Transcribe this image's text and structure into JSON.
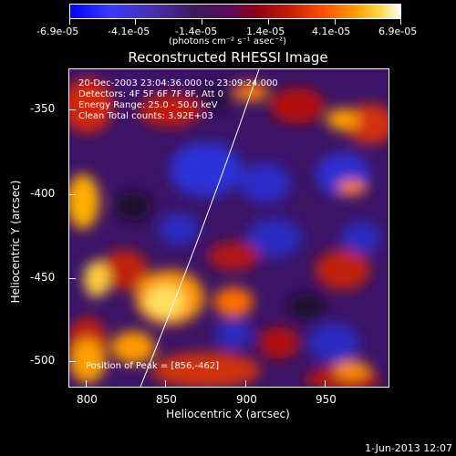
{
  "colorbar": {
    "tick_labels": [
      "-6.9e-05",
      "-4.1e-05",
      "-1.4e-05",
      "1.4e-05",
      "4.1e-05",
      "6.9e-05"
    ],
    "unit_label": "(photons cm⁻² s⁻¹ asec⁻²)"
  },
  "title": "Reconstructed RHESSI Image",
  "overlay": {
    "line1": "20-Dec-2003 23:04:36.000 to 23:09:24.000",
    "line2": "Detectors: 4F 5F 6F 7F 8F, Att 0",
    "line3": "Energy Range: 25.0 - 50.0 keV",
    "line4": "Clean     Total counts: 3.92E+03",
    "peak": "Position of Peak = [856,-462]"
  },
  "axes": {
    "xlabel": "Heliocentric X (arcsec)",
    "ylabel": "Heliocentric Y (arcsec)",
    "x_ticks": [
      "800",
      "850",
      "900",
      "950"
    ],
    "y_ticks": [
      "-350",
      "-400",
      "-450",
      "-500"
    ]
  },
  "footer": {
    "date": "1-Jun-2013 12:07"
  }
}
